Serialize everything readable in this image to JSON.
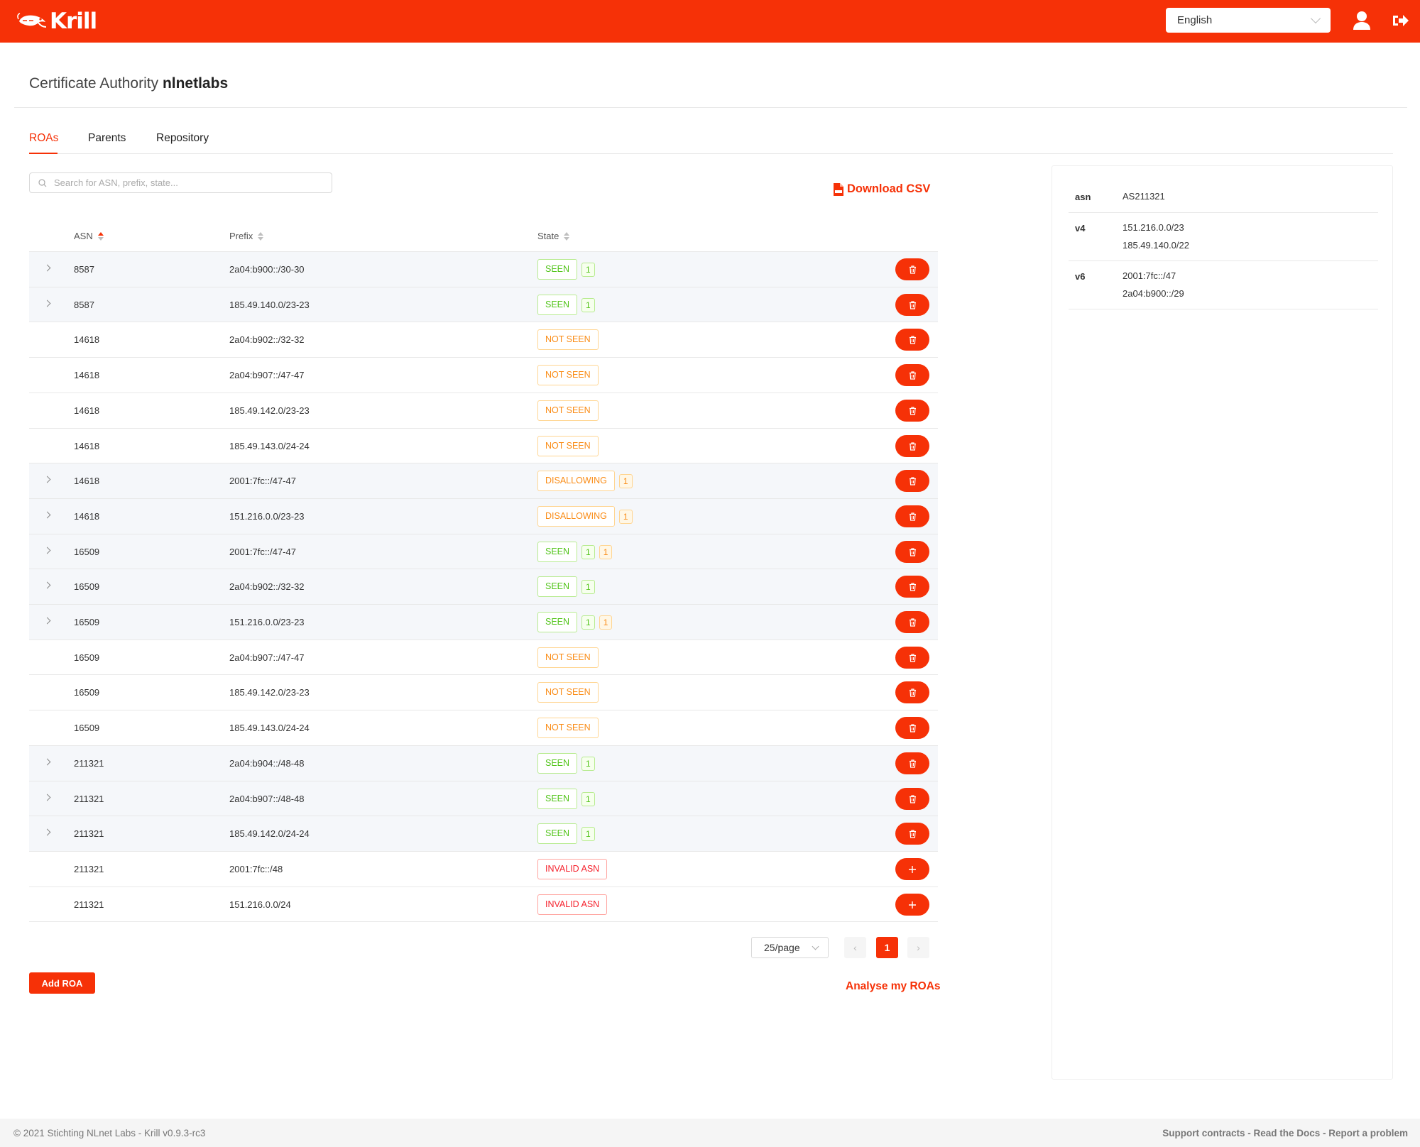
{
  "header": {
    "brand": "Krill",
    "language": "English",
    "colors": {
      "brand": "#F63107",
      "seen": "#52c41a",
      "warning": "#fa8c16",
      "invalid": "#f5222d"
    },
    "icons": [
      "shrimp-logo-icon",
      "user-icon",
      "logout-icon"
    ]
  },
  "page": {
    "title_prefix": "Certificate Authority",
    "title_name": "nlnetlabs"
  },
  "tabs": [
    {
      "label": "ROAs",
      "active": true
    },
    {
      "label": "Parents",
      "active": false
    },
    {
      "label": "Repository",
      "active": false
    }
  ],
  "search": {
    "placeholder": "Search for ASN, prefix, state..."
  },
  "download_label": "Download CSV",
  "table": {
    "columns": [
      "ASN",
      "Prefix",
      "State"
    ],
    "sorted_by": "ASN ascending",
    "rows": [
      {
        "asn": "8587",
        "prefix": "2a04:b900::/30-30",
        "state": "SEEN",
        "kind": "seen",
        "counts": [
          {
            "v": "1",
            "c": "green"
          }
        ],
        "expandable": true,
        "action": "delete"
      },
      {
        "asn": "8587",
        "prefix": "185.49.140.0/23-23",
        "state": "SEEN",
        "kind": "seen",
        "counts": [
          {
            "v": "1",
            "c": "green"
          }
        ],
        "expandable": true,
        "action": "delete"
      },
      {
        "asn": "14618",
        "prefix": "2a04:b902::/32-32",
        "state": "NOT SEEN",
        "kind": "notseen",
        "counts": [],
        "expandable": false,
        "action": "delete"
      },
      {
        "asn": "14618",
        "prefix": "2a04:b907::/47-47",
        "state": "NOT SEEN",
        "kind": "notseen",
        "counts": [],
        "expandable": false,
        "action": "delete"
      },
      {
        "asn": "14618",
        "prefix": "185.49.142.0/23-23",
        "state": "NOT SEEN",
        "kind": "notseen",
        "counts": [],
        "expandable": false,
        "action": "delete"
      },
      {
        "asn": "14618",
        "prefix": "185.49.143.0/24-24",
        "state": "NOT SEEN",
        "kind": "notseen",
        "counts": [],
        "expandable": false,
        "action": "delete"
      },
      {
        "asn": "14618",
        "prefix": "2001:7fc::/47-47",
        "state": "DISALLOWING",
        "kind": "disallow",
        "counts": [
          {
            "v": "1",
            "c": "orange"
          }
        ],
        "expandable": true,
        "action": "delete"
      },
      {
        "asn": "14618",
        "prefix": "151.216.0.0/23-23",
        "state": "DISALLOWING",
        "kind": "disallow",
        "counts": [
          {
            "v": "1",
            "c": "orange"
          }
        ],
        "expandable": true,
        "action": "delete"
      },
      {
        "asn": "16509",
        "prefix": "2001:7fc::/47-47",
        "state": "SEEN",
        "kind": "seen",
        "counts": [
          {
            "v": "1",
            "c": "green"
          },
          {
            "v": "1",
            "c": "orange"
          }
        ],
        "expandable": true,
        "action": "delete"
      },
      {
        "asn": "16509",
        "prefix": "2a04:b902::/32-32",
        "state": "SEEN",
        "kind": "seen",
        "counts": [
          {
            "v": "1",
            "c": "green"
          }
        ],
        "expandable": true,
        "action": "delete"
      },
      {
        "asn": "16509",
        "prefix": "151.216.0.0/23-23",
        "state": "SEEN",
        "kind": "seen",
        "counts": [
          {
            "v": "1",
            "c": "green"
          },
          {
            "v": "1",
            "c": "orange"
          }
        ],
        "expandable": true,
        "action": "delete"
      },
      {
        "asn": "16509",
        "prefix": "2a04:b907::/47-47",
        "state": "NOT SEEN",
        "kind": "notseen",
        "counts": [],
        "expandable": false,
        "action": "delete"
      },
      {
        "asn": "16509",
        "prefix": "185.49.142.0/23-23",
        "state": "NOT SEEN",
        "kind": "notseen",
        "counts": [],
        "expandable": false,
        "action": "delete"
      },
      {
        "asn": "16509",
        "prefix": "185.49.143.0/24-24",
        "state": "NOT SEEN",
        "kind": "notseen",
        "counts": [],
        "expandable": false,
        "action": "delete"
      },
      {
        "asn": "211321",
        "prefix": "2a04:b904::/48-48",
        "state": "SEEN",
        "kind": "seen",
        "counts": [
          {
            "v": "1",
            "c": "green"
          }
        ],
        "expandable": true,
        "action": "delete"
      },
      {
        "asn": "211321",
        "prefix": "2a04:b907::/48-48",
        "state": "SEEN",
        "kind": "seen",
        "counts": [
          {
            "v": "1",
            "c": "green"
          }
        ],
        "expandable": true,
        "action": "delete"
      },
      {
        "asn": "211321",
        "prefix": "185.49.142.0/24-24",
        "state": "SEEN",
        "kind": "seen",
        "counts": [
          {
            "v": "1",
            "c": "green"
          }
        ],
        "expandable": true,
        "action": "delete"
      },
      {
        "asn": "211321",
        "prefix": "2001:7fc::/48",
        "state": "INVALID ASN",
        "kind": "invalid",
        "counts": [],
        "expandable": false,
        "action": "add"
      },
      {
        "asn": "211321",
        "prefix": "151.216.0.0/24",
        "state": "INVALID ASN",
        "kind": "invalid",
        "counts": [],
        "expandable": false,
        "action": "add"
      }
    ]
  },
  "pagination": {
    "page_size": "25/page",
    "current_page": "1"
  },
  "add_roa_label": "Add ROA",
  "analyse_label": "Analyse my ROAs",
  "side_panel": {
    "rows": [
      {
        "key": "asn",
        "values": [
          "AS211321"
        ]
      },
      {
        "key": "v4",
        "values": [
          "151.216.0.0/23",
          "185.49.140.0/22"
        ]
      },
      {
        "key": "v6",
        "values": [
          "2001:7fc::/47",
          "2a04:b900::/29"
        ]
      }
    ]
  },
  "footer": {
    "copyright": "© 2021 Stichting NLnet Labs - Krill v0.9.3-rc3",
    "links": "Support contracts - Read the Docs - Report a problem"
  }
}
